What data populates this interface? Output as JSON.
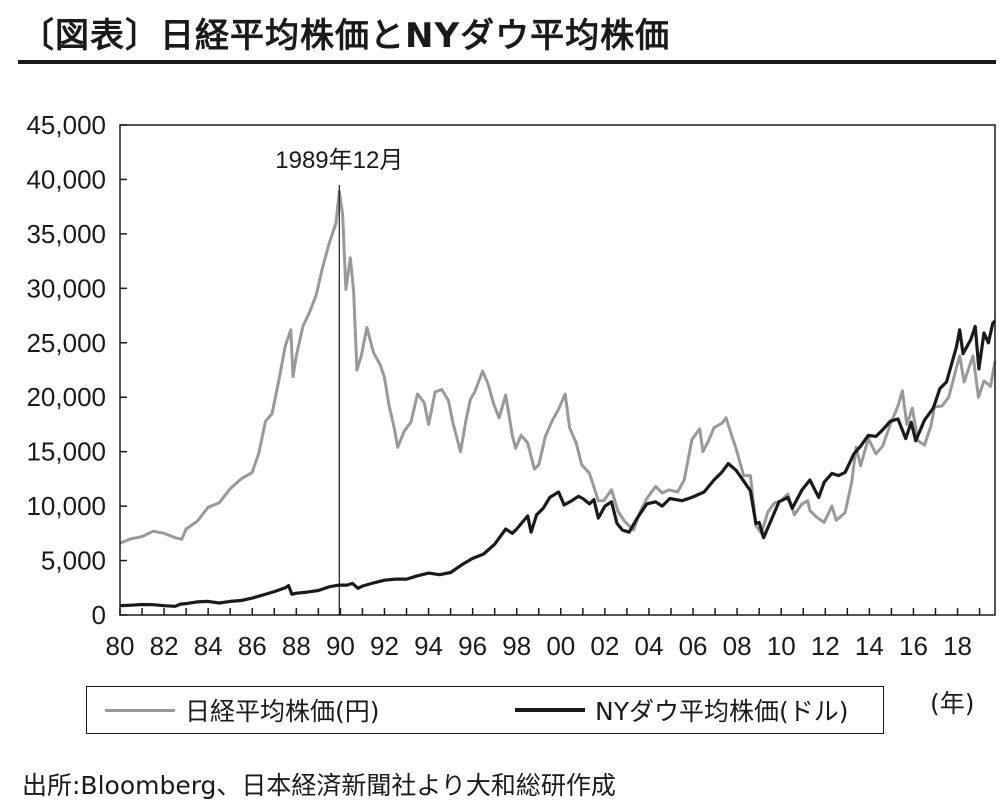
{
  "header": {
    "title": "〔図表〕日経平均株価とNYダウ平均株価"
  },
  "legend": {
    "nikkei": "日経平均株価(円)",
    "dow": "NYダウ平均株価(ドル)"
  },
  "unit_label": "(年)",
  "source": "出所:Bloomberg、日本経済新聞社より大和総研作成",
  "colors": {
    "nikkei": "#999999",
    "dow": "#1a1a1a",
    "axis": "#1a1a1a"
  },
  "chart_data": {
    "type": "line",
    "title": "日経平均株価とNYダウ平均株価",
    "x_unit": "年",
    "x_tick_labels": [
      "80",
      "82",
      "84",
      "86",
      "88",
      "90",
      "92",
      "94",
      "96",
      "98",
      "00",
      "02",
      "04",
      "06",
      "08",
      "10",
      "12",
      "14",
      "16",
      "18"
    ],
    "xlim": [
      1980,
      2019.7
    ],
    "ylim": [
      0,
      45000
    ],
    "y_tick_labels": [
      "0",
      "5,000",
      "10,000",
      "15,000",
      "20,000",
      "25,000",
      "30,000",
      "35,000",
      "40,000",
      "45,000"
    ],
    "grid": false,
    "legend_position": "bottom",
    "annotations": [
      {
        "x": 1989.95,
        "label": "1989年12月"
      }
    ],
    "series": [
      {
        "name": "日経平均株価(円)",
        "points": [
          [
            1980.0,
            6600
          ],
          [
            1980.5,
            7000
          ],
          [
            1981.0,
            7200
          ],
          [
            1981.5,
            7700
          ],
          [
            1982.0,
            7500
          ],
          [
            1982.5,
            7100
          ],
          [
            1982.8,
            6950
          ],
          [
            1983.0,
            7900
          ],
          [
            1983.5,
            8600
          ],
          [
            1984.0,
            9900
          ],
          [
            1984.5,
            10300
          ],
          [
            1985.0,
            11600
          ],
          [
            1985.5,
            12500
          ],
          [
            1986.0,
            13100
          ],
          [
            1986.3,
            14900
          ],
          [
            1986.6,
            17800
          ],
          [
            1986.9,
            18500
          ],
          [
            1987.2,
            21500
          ],
          [
            1987.5,
            24700
          ],
          [
            1987.75,
            26200
          ],
          [
            1987.85,
            21900
          ],
          [
            1988.0,
            23800
          ],
          [
            1988.3,
            26500
          ],
          [
            1988.6,
            27800
          ],
          [
            1988.9,
            29400
          ],
          [
            1989.2,
            32000
          ],
          [
            1989.5,
            34200
          ],
          [
            1989.8,
            36000
          ],
          [
            1989.95,
            38900
          ],
          [
            1990.1,
            36800
          ],
          [
            1990.25,
            29900
          ],
          [
            1990.45,
            32800
          ],
          [
            1990.6,
            29800
          ],
          [
            1990.75,
            22500
          ],
          [
            1990.95,
            23800
          ],
          [
            1991.2,
            26400
          ],
          [
            1991.5,
            24100
          ],
          [
            1991.8,
            23000
          ],
          [
            1992.0,
            21800
          ],
          [
            1992.2,
            19300
          ],
          [
            1992.45,
            17100
          ],
          [
            1992.6,
            15400
          ],
          [
            1992.9,
            16900
          ],
          [
            1993.2,
            17700
          ],
          [
            1993.5,
            20300
          ],
          [
            1993.8,
            19500
          ],
          [
            1994.0,
            17500
          ],
          [
            1994.3,
            20500
          ],
          [
            1994.6,
            20700
          ],
          [
            1994.9,
            19700
          ],
          [
            1995.1,
            17700
          ],
          [
            1995.45,
            15000
          ],
          [
            1995.7,
            17900
          ],
          [
            1995.9,
            19800
          ],
          [
            1996.1,
            20500
          ],
          [
            1996.45,
            22400
          ],
          [
            1996.7,
            21200
          ],
          [
            1996.95,
            19400
          ],
          [
            1997.2,
            18100
          ],
          [
            1997.5,
            20200
          ],
          [
            1997.8,
            16500
          ],
          [
            1997.95,
            15300
          ],
          [
            1998.2,
            16500
          ],
          [
            1998.5,
            15800
          ],
          [
            1998.8,
            13400
          ],
          [
            1999.0,
            13800
          ],
          [
            1999.3,
            16400
          ],
          [
            1999.6,
            17800
          ],
          [
            1999.9,
            18900
          ],
          [
            2000.2,
            20300
          ],
          [
            2000.4,
            17200
          ],
          [
            2000.7,
            15800
          ],
          [
            2000.95,
            13800
          ],
          [
            2001.3,
            13000
          ],
          [
            2001.7,
            10500
          ],
          [
            2001.95,
            10500
          ],
          [
            2002.3,
            11500
          ],
          [
            2002.6,
            9500
          ],
          [
            2002.9,
            8600
          ],
          [
            2003.3,
            7800
          ],
          [
            2003.6,
            9500
          ],
          [
            2003.9,
            10700
          ],
          [
            2004.3,
            11800
          ],
          [
            2004.6,
            11200
          ],
          [
            2004.9,
            11500
          ],
          [
            2005.3,
            11300
          ],
          [
            2005.6,
            12400
          ],
          [
            2005.95,
            16100
          ],
          [
            2006.3,
            17100
          ],
          [
            2006.45,
            15000
          ],
          [
            2006.7,
            16000
          ],
          [
            2006.95,
            17200
          ],
          [
            2007.3,
            17600
          ],
          [
            2007.5,
            18100
          ],
          [
            2007.75,
            16500
          ],
          [
            2007.95,
            15300
          ],
          [
            2008.3,
            12800
          ],
          [
            2008.6,
            12800
          ],
          [
            2008.85,
            8200
          ],
          [
            2009.1,
            7500
          ],
          [
            2009.4,
            9500
          ],
          [
            2009.7,
            10300
          ],
          [
            2010.0,
            10500
          ],
          [
            2010.3,
            11100
          ],
          [
            2010.6,
            9200
          ],
          [
            2010.95,
            10200
          ],
          [
            2011.2,
            10500
          ],
          [
            2011.3,
            9600
          ],
          [
            2011.6,
            9000
          ],
          [
            2011.95,
            8500
          ],
          [
            2012.3,
            10000
          ],
          [
            2012.5,
            8700
          ],
          [
            2012.9,
            9400
          ],
          [
            2013.2,
            12200
          ],
          [
            2013.4,
            15400
          ],
          [
            2013.6,
            13700
          ],
          [
            2013.95,
            16200
          ],
          [
            2014.3,
            14800
          ],
          [
            2014.6,
            15500
          ],
          [
            2014.95,
            17500
          ],
          [
            2015.3,
            19200
          ],
          [
            2015.5,
            20600
          ],
          [
            2015.7,
            17500
          ],
          [
            2015.95,
            19000
          ],
          [
            2016.2,
            16000
          ],
          [
            2016.5,
            15600
          ],
          [
            2016.8,
            17400
          ],
          [
            2016.95,
            19100
          ],
          [
            2017.3,
            19200
          ],
          [
            2017.6,
            20000
          ],
          [
            2017.95,
            22700
          ],
          [
            2018.1,
            23800
          ],
          [
            2018.3,
            21400
          ],
          [
            2018.7,
            23800
          ],
          [
            2018.95,
            20000
          ],
          [
            2019.2,
            21500
          ],
          [
            2019.5,
            21000
          ],
          [
            2019.7,
            23300
          ]
        ]
      },
      {
        "name": "NYダウ平均株価(ドル)",
        "points": [
          [
            1980.0,
            850
          ],
          [
            1980.5,
            900
          ],
          [
            1981.0,
            960
          ],
          [
            1981.5,
            950
          ],
          [
            1982.0,
            850
          ],
          [
            1982.5,
            800
          ],
          [
            1982.75,
            1000
          ],
          [
            1983.0,
            1050
          ],
          [
            1983.5,
            1200
          ],
          [
            1984.0,
            1250
          ],
          [
            1984.5,
            1100
          ],
          [
            1985.0,
            1250
          ],
          [
            1985.5,
            1330
          ],
          [
            1986.0,
            1550
          ],
          [
            1986.5,
            1850
          ],
          [
            1987.0,
            2150
          ],
          [
            1987.5,
            2500
          ],
          [
            1987.65,
            2700
          ],
          [
            1987.8,
            1900
          ],
          [
            1988.0,
            2000
          ],
          [
            1988.5,
            2100
          ],
          [
            1989.0,
            2250
          ],
          [
            1989.5,
            2600
          ],
          [
            1989.95,
            2750
          ],
          [
            1990.3,
            2750
          ],
          [
            1990.55,
            2900
          ],
          [
            1990.8,
            2450
          ],
          [
            1991.0,
            2650
          ],
          [
            1991.5,
            2950
          ],
          [
            1992.0,
            3200
          ],
          [
            1992.5,
            3300
          ],
          [
            1993.0,
            3300
          ],
          [
            1993.5,
            3600
          ],
          [
            1994.0,
            3850
          ],
          [
            1994.5,
            3700
          ],
          [
            1995.0,
            3900
          ],
          [
            1995.5,
            4600
          ],
          [
            1996.0,
            5200
          ],
          [
            1996.5,
            5600
          ],
          [
            1997.0,
            6500
          ],
          [
            1997.5,
            7900
          ],
          [
            1997.8,
            7500
          ],
          [
            1998.0,
            7900
          ],
          [
            1998.5,
            9100
          ],
          [
            1998.65,
            7600
          ],
          [
            1998.9,
            9200
          ],
          [
            1999.2,
            9800
          ],
          [
            1999.5,
            10800
          ],
          [
            1999.9,
            11300
          ],
          [
            2000.15,
            10100
          ],
          [
            2000.5,
            10500
          ],
          [
            2000.8,
            10900
          ],
          [
            2001.0,
            10700
          ],
          [
            2001.3,
            10200
          ],
          [
            2001.5,
            10600
          ],
          [
            2001.7,
            8900
          ],
          [
            2002.0,
            10000
          ],
          [
            2002.3,
            10400
          ],
          [
            2002.55,
            8400
          ],
          [
            2002.8,
            7800
          ],
          [
            2003.1,
            7600
          ],
          [
            2003.5,
            9000
          ],
          [
            2003.9,
            10200
          ],
          [
            2004.3,
            10400
          ],
          [
            2004.6,
            10000
          ],
          [
            2004.95,
            10700
          ],
          [
            2005.5,
            10500
          ],
          [
            2005.95,
            10800
          ],
          [
            2006.5,
            11300
          ],
          [
            2006.95,
            12400
          ],
          [
            2007.3,
            13100
          ],
          [
            2007.6,
            13900
          ],
          [
            2007.95,
            13300
          ],
          [
            2008.3,
            12300
          ],
          [
            2008.6,
            11400
          ],
          [
            2008.85,
            8400
          ],
          [
            2009.0,
            8500
          ],
          [
            2009.2,
            7100
          ],
          [
            2009.5,
            8500
          ],
          [
            2009.9,
            10400
          ],
          [
            2010.3,
            10800
          ],
          [
            2010.5,
            9800
          ],
          [
            2010.95,
            11500
          ],
          [
            2011.3,
            12400
          ],
          [
            2011.7,
            10800
          ],
          [
            2011.95,
            12200
          ],
          [
            2012.3,
            13000
          ],
          [
            2012.6,
            12800
          ],
          [
            2012.9,
            13100
          ],
          [
            2013.3,
            14800
          ],
          [
            2013.6,
            15500
          ],
          [
            2013.95,
            16500
          ],
          [
            2014.3,
            16400
          ],
          [
            2014.6,
            17000
          ],
          [
            2014.95,
            17800
          ],
          [
            2015.3,
            18000
          ],
          [
            2015.65,
            16200
          ],
          [
            2015.9,
            17700
          ],
          [
            2016.1,
            16000
          ],
          [
            2016.5,
            17900
          ],
          [
            2016.9,
            19000
          ],
          [
            2017.2,
            20800
          ],
          [
            2017.5,
            21400
          ],
          [
            2017.95,
            24600
          ],
          [
            2018.1,
            26200
          ],
          [
            2018.25,
            24000
          ],
          [
            2018.6,
            25300
          ],
          [
            2018.8,
            26500
          ],
          [
            2018.97,
            22600
          ],
          [
            2019.2,
            25900
          ],
          [
            2019.4,
            25000
          ],
          [
            2019.6,
            26800
          ],
          [
            2019.7,
            27000
          ]
        ]
      }
    ]
  }
}
